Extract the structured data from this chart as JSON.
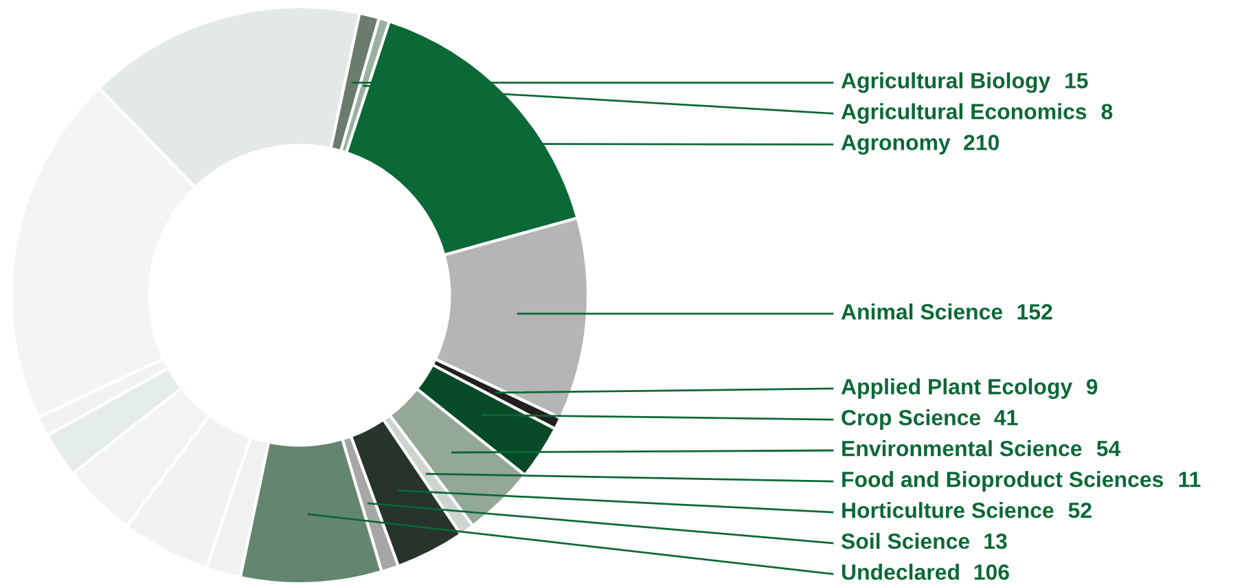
{
  "chart_data": {
    "type": "donut",
    "categories": [
      "Agricultural Biology",
      "Agricultural Economics",
      "Agronomy",
      "Animal Science",
      "Applied Plant Ecology",
      "Crop Science",
      "Environmental Science",
      "Food and Bioproduct Sciences",
      "Horticulture Science",
      "Soil Science",
      "Undeclared",
      null,
      null,
      null,
      null,
      null,
      null,
      null
    ],
    "values": [
      15,
      8,
      210,
      152,
      9,
      41,
      54,
      11,
      52,
      13,
      106,
      26,
      67,
      56,
      34,
      15,
      265,
      209
    ],
    "value_labels": [
      "15",
      "8",
      "210",
      "152",
      "9",
      "41",
      "54",
      "11",
      "52",
      "13",
      "106",
      null,
      null,
      null,
      null,
      null,
      null,
      null
    ],
    "colors": [
      "#6b7b6e",
      "#9bb0a0",
      "#0b6837",
      "#b4b5b4",
      "#231f20",
      "#064a27",
      "#94a897",
      "#cdd5cf",
      "#26342b",
      "#a6a6a6",
      "#648670",
      "#f0f1f0",
      "#f1f2f1",
      "#f2f3f2",
      "#e4ede7",
      "#f2f2f2",
      "#f3f4f3",
      "#e4e8e6"
    ]
  }
}
